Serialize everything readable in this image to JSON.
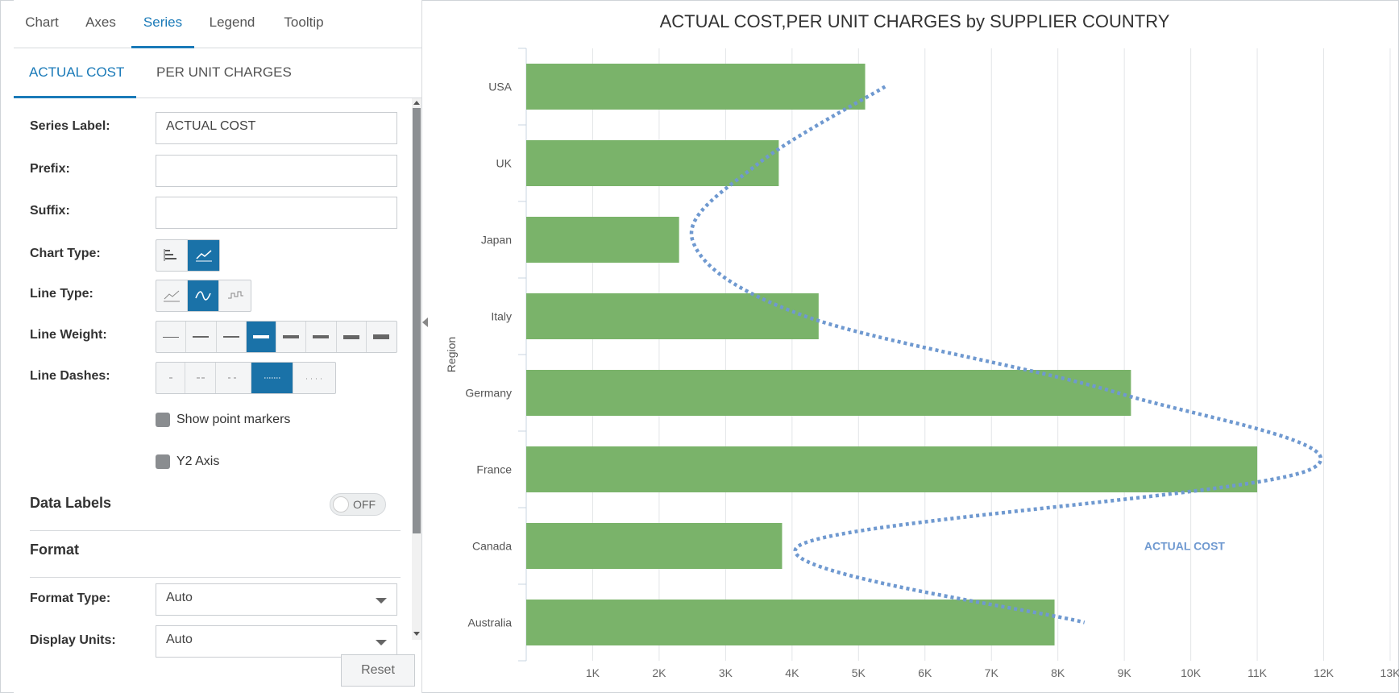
{
  "tabs": [
    "Chart",
    "Axes",
    "Series",
    "Legend",
    "Tooltip"
  ],
  "series_tabs": [
    "ACTUAL COST",
    "PER UNIT CHARGES"
  ],
  "form": {
    "series_label": "Series Label:",
    "series_label_value": "ACTUAL COST",
    "prefix": "Prefix:",
    "suffix": "Suffix:",
    "chart_type": "Chart Type:",
    "line_type": "Line Type:",
    "line_weight": "Line Weight:",
    "line_dashes": "Line Dashes:",
    "show_point_markers": "Show point markers",
    "y2_axis": "Y2 Axis",
    "data_labels": "Data Labels",
    "data_labels_toggle": "OFF",
    "format": "Format",
    "format_type": "Format Type:",
    "format_type_value": "Auto",
    "display_units": "Display Units:",
    "display_units_value": "Auto"
  },
  "reset_label": "Reset",
  "colors": {
    "accent": "#1a7ab8",
    "bar": "#7ab36a",
    "line": "#6f99d0"
  },
  "chart_data": {
    "type": "bar",
    "orientation": "horizontal",
    "title": "ACTUAL COST,PER UNIT CHARGES by SUPPLIER COUNTRY",
    "ylabel": "Region",
    "xlabel": "",
    "categories": [
      "USA",
      "UK",
      "Japan",
      "Italy",
      "Germany",
      "France",
      "Canada",
      "Australia"
    ],
    "series": [
      {
        "type": "bar",
        "values": [
          5100,
          3800,
          2300,
          4400,
          9100,
          11000,
          3850,
          7950
        ]
      },
      {
        "name": "ACTUAL COST",
        "type": "line",
        "line_style": "dotted-spline",
        "values": [
          5400,
          3500,
          2500,
          4200,
          8900,
          11800,
          4100,
          8400
        ]
      }
    ],
    "xticks": [
      "1K",
      "2K",
      "3K",
      "4K",
      "5K",
      "6K",
      "7K",
      "8K",
      "9K",
      "10K",
      "11K",
      "12K",
      "13K"
    ],
    "xlim": [
      0,
      13000
    ],
    "grid": true
  }
}
